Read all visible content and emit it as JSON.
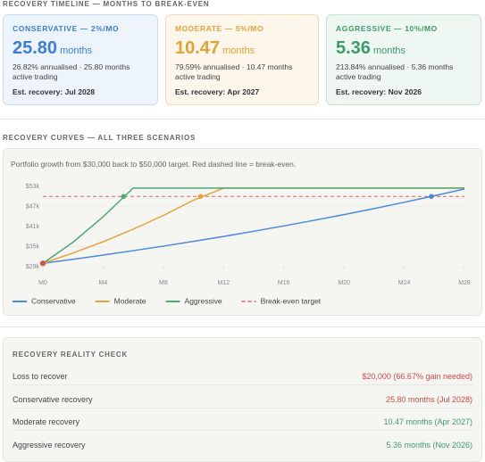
{
  "header": {
    "title": "RECOVERY TIMELINE — MONTHS TO BREAK-EVEN"
  },
  "cards": [
    {
      "label": "CONSERVATIVE — 2%/MO",
      "value": "25.80",
      "unit": "months",
      "note": "26.82% annualised · 25.80 months active trading",
      "recovery": "Est. recovery: Jul 2028",
      "color": "#3b7dd8",
      "bg": "#eef4fc",
      "border": "#c9dbf3"
    },
    {
      "label": "MODERATE — 5%/MO",
      "value": "10.47",
      "unit": "months",
      "note": "79.59% annualised · 10.47 months active trading",
      "recovery": "Est. recovery: Apr 2027",
      "color": "#e3a13a",
      "bg": "#fdf6ea",
      "border": "#f0dcb6"
    },
    {
      "label": "AGGRESSIVE — 10%/MO",
      "value": "5.36",
      "unit": "months",
      "note": "213.84% annualised · 5.36 months active trading",
      "recovery": "Est. recovery: Nov 2026",
      "color": "#3f9a6a",
      "bg": "#eef7f1",
      "border": "#c6e3d2"
    }
  ],
  "chart_section": {
    "title": "RECOVERY CURVES — ALL THREE SCENARIOS"
  },
  "chart_data": {
    "type": "line",
    "subtitle": "Portfolio growth from $30,000 back to $50,000 target. Red dashed line = break-even.",
    "x": [
      0,
      2,
      4,
      6,
      8,
      10,
      12,
      14,
      16,
      18,
      20,
      22,
      24,
      26,
      28
    ],
    "series": [
      {
        "name": "Conservative",
        "color": "#4a8ad6",
        "values": [
          30000,
          31212,
          32473,
          33785,
          35150,
          36570,
          38047,
          39584,
          41183,
          42847,
          44578,
          46379,
          48252,
          50202,
          52230
        ],
        "breakeven_x": 25.8
      },
      {
        "name": "Moderate",
        "color": "#e9a23b",
        "values": [
          30000,
          33075,
          36465,
          40203,
          44324,
          48867,
          52500,
          52500,
          52500,
          52500,
          52500,
          52500,
          52500,
          52500,
          52500
        ],
        "breakeven_x": 10.47
      },
      {
        "name": "Aggressive",
        "color": "#4caa72",
        "values": [
          30000,
          36300,
          43923,
          52500,
          52500,
          52500,
          52500,
          52500,
          52500,
          52500,
          52500,
          52500,
          52500,
          52500,
          52500
        ],
        "breakeven_x": 5.36
      }
    ],
    "start": {
      "x": 0,
      "y": 30000,
      "color": "#e05050"
    },
    "target": {
      "name": "Break-even target",
      "value": 50000,
      "color": "#e06060"
    },
    "xlim": [
      0,
      28
    ],
    "xticks": [
      {
        "value": 0,
        "label": "M0"
      },
      {
        "value": 4,
        "label": "M4"
      },
      {
        "value": 8,
        "label": "M8"
      },
      {
        "value": 12,
        "label": "M12"
      },
      {
        "value": 16,
        "label": "M16"
      },
      {
        "value": 20,
        "label": "M20"
      },
      {
        "value": 24,
        "label": "M24"
      },
      {
        "value": 28,
        "label": "M28"
      }
    ],
    "ylim": [
      29000,
      53000
    ],
    "yticks": [
      {
        "value": 29000,
        "label": "$29k"
      },
      {
        "value": 35000,
        "label": "$35k"
      },
      {
        "value": 41000,
        "label": "$41k"
      },
      {
        "value": 47000,
        "label": "$47k"
      },
      {
        "value": 53000,
        "label": "$53k"
      }
    ],
    "grid": true
  },
  "reality": {
    "title": "RECOVERY REALITY CHECK",
    "rows": [
      {
        "label": "Loss to recover",
        "value": "$20,000 (66.67% gain needed)",
        "color": "#d04848"
      },
      {
        "label": "Conservative recovery",
        "value": "25.80 months (Jul 2028)",
        "color": "#d04848"
      },
      {
        "label": "Moderate recovery",
        "value": "10.47 months (Apr 2027)",
        "color": "#3f9a6a"
      },
      {
        "label": "Aggressive recovery",
        "value": "5.36 months (Nov 2026)",
        "color": "#3f9a6a"
      }
    ]
  }
}
